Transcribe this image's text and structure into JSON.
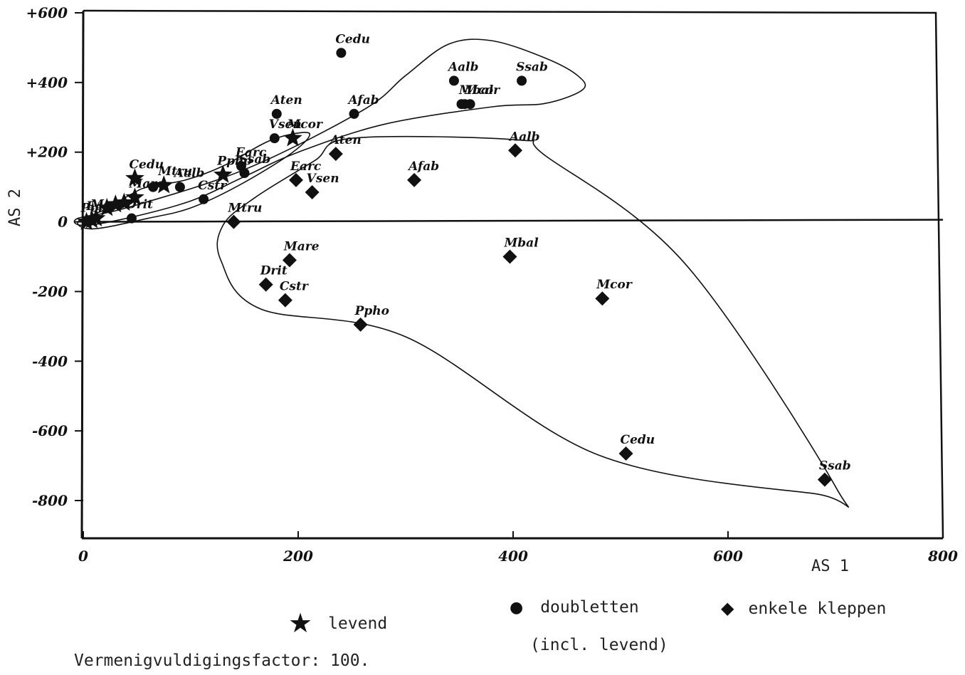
{
  "chart_data": {
    "type": "scatter",
    "xlabel": "AS 1",
    "ylabel": "AS 2",
    "xlim": [
      0,
      800
    ],
    "ylim": [
      -900,
      600
    ],
    "x_ticks": [
      {
        "value": 0,
        "label": "0"
      },
      {
        "value": 200,
        "label": "200"
      },
      {
        "value": 400,
        "label": "400"
      },
      {
        "value": 600,
        "label": "600"
      },
      {
        "value": 800,
        "label": "800"
      }
    ],
    "y_ticks": [
      {
        "value": 600,
        "label": "+600"
      },
      {
        "value": 400,
        "label": "+400"
      },
      {
        "value": 200,
        "label": "+200"
      },
      {
        "value": 0,
        "label": "0"
      },
      {
        "value": -200,
        "label": "-200"
      },
      {
        "value": -400,
        "label": "-400"
      },
      {
        "value": -600,
        "label": "-600"
      },
      {
        "value": -800,
        "label": "-800"
      }
    ],
    "series": [
      {
        "name": "levend",
        "marker": "star",
        "points": [
          {
            "x": 48,
            "y": 125,
            "label": "Cedu"
          },
          {
            "x": 195,
            "y": 240,
            "label": "Mcor"
          },
          {
            "x": 130,
            "y": 135,
            "label": "Pphô"
          },
          {
            "x": 75,
            "y": 105,
            "label": "Mtru"
          },
          {
            "x": 48,
            "y": 70,
            "label": "Mare"
          },
          {
            "x": 38,
            "y": 55,
            "label": ""
          },
          {
            "x": 30,
            "y": 50,
            "label": ""
          },
          {
            "x": 22,
            "y": 40,
            "label": ""
          },
          {
            "x": 12,
            "y": 10,
            "label": "Mare"
          },
          {
            "x": 8,
            "y": 5,
            "label": "Earc"
          },
          {
            "x": 3,
            "y": 0,
            "label": "Ppho"
          }
        ]
      },
      {
        "name": "doubletten",
        "marker": "circle",
        "points": [
          {
            "x": 240,
            "y": 485,
            "label": "Cedu"
          },
          {
            "x": 345,
            "y": 405,
            "label": "Aalb"
          },
          {
            "x": 408,
            "y": 405,
            "label": "Ssab"
          },
          {
            "x": 352,
            "y": 338,
            "label": ""
          },
          {
            "x": 355,
            "y": 338,
            "label": "Mbal"
          },
          {
            "x": 360,
            "y": 338,
            "label": "Mcor"
          },
          {
            "x": 180,
            "y": 310,
            "label": "Aten"
          },
          {
            "x": 252,
            "y": 310,
            "label": "Afab"
          },
          {
            "x": 178,
            "y": 240,
            "label": "Vsen"
          },
          {
            "x": 147,
            "y": 160,
            "label": "Earc"
          },
          {
            "x": 112,
            "y": 65,
            "label": "Cstr"
          },
          {
            "x": 90,
            "y": 100,
            "label": "Aalb"
          },
          {
            "x": 65,
            "y": 100,
            "label": ""
          },
          {
            "x": 45,
            "y": 10,
            "label": "Drit"
          },
          {
            "x": 150,
            "y": 140,
            "label": "Ssab"
          }
        ]
      },
      {
        "name": "enkele kleppen",
        "marker": "diamond",
        "points": [
          {
            "x": 235,
            "y": 195,
            "label": "Aten"
          },
          {
            "x": 402,
            "y": 205,
            "label": "Aalb"
          },
          {
            "x": 198,
            "y": 120,
            "label": "Earc"
          },
          {
            "x": 213,
            "y": 85,
            "label": "Vsen"
          },
          {
            "x": 308,
            "y": 120,
            "label": "Afab"
          },
          {
            "x": 140,
            "y": 0,
            "label": "Mtru"
          },
          {
            "x": 192,
            "y": -110,
            "label": "Mare"
          },
          {
            "x": 397,
            "y": -100,
            "label": "Mbal"
          },
          {
            "x": 170,
            "y": -180,
            "label": "Drit"
          },
          {
            "x": 188,
            "y": -225,
            "label": "Cstr"
          },
          {
            "x": 258,
            "y": -295,
            "label": "Ppho"
          },
          {
            "x": 483,
            "y": -220,
            "label": "Mcor"
          },
          {
            "x": 505,
            "y": -665,
            "label": "Cedu"
          },
          {
            "x": 690,
            "y": -740,
            "label": "Ssab"
          }
        ]
      }
    ],
    "grid": false,
    "legend_position": "bottom"
  },
  "legend": {
    "levend": "levend",
    "doubletten": "doubletten",
    "doubletten_note": "(incl. levend)",
    "enkele": "enkele kleppen"
  },
  "note": "Vermenigvuldigingsfactor: 100."
}
